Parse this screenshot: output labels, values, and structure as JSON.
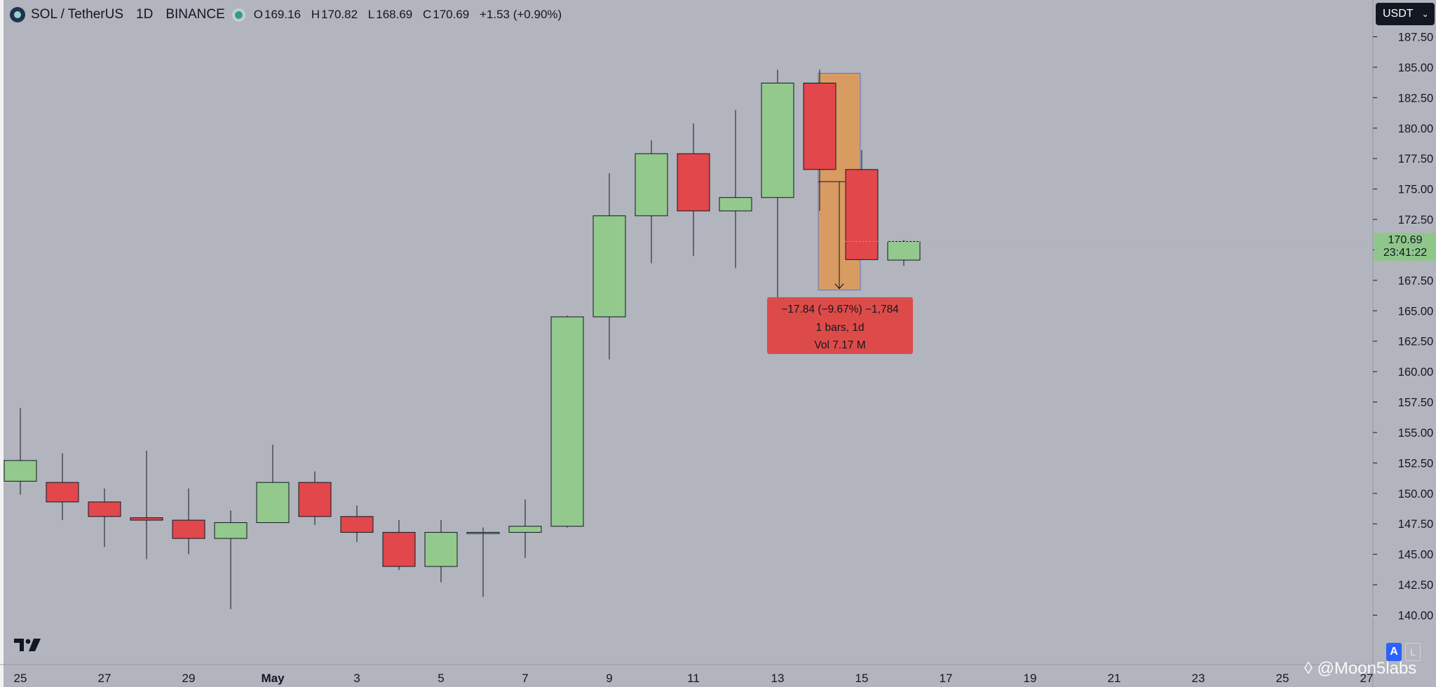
{
  "header": {
    "symbol": "SOL / TetherUS",
    "interval": "1D",
    "exchange": "BINANCE",
    "ohlc": {
      "o_label": "O",
      "o": "169.16",
      "h_label": "H",
      "h": "170.82",
      "l_label": "L",
      "l": "168.69",
      "c_label": "C",
      "c": "170.69",
      "change": "+1.53 (+0.90%)"
    }
  },
  "currency_button": {
    "label": "USDT"
  },
  "last_price": {
    "price": "170.69",
    "countdown": "23:41:22"
  },
  "measure_tooltip": {
    "line1": "−17.84 (−9.67%) −1,784",
    "line2": "1 bars, 1d",
    "line3": "Vol 7.17 M"
  },
  "autoscale_button": {
    "label": "A"
  },
  "log_button": {
    "label": "L"
  },
  "watermark": {
    "text": "@Moon5labs"
  },
  "colors": {
    "up": "#93c98c",
    "down": "#e2474b",
    "background": "#b2b5be",
    "measure_fill": "#d89b62",
    "measure_border": "#5f73c9",
    "tooltip_bg": "#dd4b49"
  },
  "chart_data": {
    "type": "candlestick",
    "y_axis": {
      "range": [
        138.5,
        188.5
      ],
      "ticks": [
        "187.50",
        "185.00",
        "182.50",
        "180.00",
        "177.50",
        "175.00",
        "172.50",
        "170.00",
        "167.50",
        "165.00",
        "162.50",
        "160.00",
        "157.50",
        "155.00",
        "152.50",
        "150.00",
        "147.50",
        "145.00",
        "142.50",
        "140.00"
      ],
      "side": "right"
    },
    "x_axis": {
      "ticks": [
        "25",
        "27",
        "29",
        "May",
        "3",
        "5",
        "7",
        "9",
        "11",
        "13",
        "15",
        "17",
        "19",
        "21",
        "23",
        "25",
        "27"
      ]
    },
    "candles": [
      {
        "date": "Apr 25",
        "open": 151.0,
        "high": 157.0,
        "low": 149.9,
        "close": 152.7
      },
      {
        "date": "Apr 26",
        "open": 150.9,
        "high": 153.3,
        "low": 147.8,
        "close": 149.3
      },
      {
        "date": "Apr 27",
        "open": 149.3,
        "high": 150.4,
        "low": 145.6,
        "close": 148.1
      },
      {
        "date": "Apr 28",
        "open": 148.0,
        "high": 153.5,
        "low": 144.6,
        "close": 147.8
      },
      {
        "date": "Apr 29",
        "open": 147.8,
        "high": 150.4,
        "low": 145.0,
        "close": 146.3
      },
      {
        "date": "Apr 30",
        "open": 146.3,
        "high": 148.6,
        "low": 140.5,
        "close": 147.6
      },
      {
        "date": "May 1",
        "open": 147.6,
        "high": 154.0,
        "low": 147.6,
        "close": 150.9
      },
      {
        "date": "May 2",
        "open": 150.9,
        "high": 151.8,
        "low": 147.4,
        "close": 148.1
      },
      {
        "date": "May 3",
        "open": 148.1,
        "high": 149.0,
        "low": 146.0,
        "close": 146.8
      },
      {
        "date": "May 4",
        "open": 146.8,
        "high": 147.8,
        "low": 143.7,
        "close": 144.0
      },
      {
        "date": "May 5",
        "open": 144.0,
        "high": 147.8,
        "low": 142.7,
        "close": 146.8
      },
      {
        "date": "May 6",
        "open": 146.7,
        "high": 147.2,
        "low": 141.5,
        "close": 146.8
      },
      {
        "date": "May 7",
        "open": 146.8,
        "high": 149.5,
        "low": 144.7,
        "close": 147.3
      },
      {
        "date": "May 8",
        "open": 147.3,
        "high": 164.6,
        "low": 147.2,
        "close": 164.5
      },
      {
        "date": "May 9",
        "open": 164.5,
        "high": 176.3,
        "low": 161.0,
        "close": 172.8
      },
      {
        "date": "May 10",
        "open": 172.8,
        "high": 179.0,
        "low": 168.9,
        "close": 177.9
      },
      {
        "date": "May 11",
        "open": 177.9,
        "high": 180.4,
        "low": 169.5,
        "close": 173.2
      },
      {
        "date": "May 12",
        "open": 173.2,
        "high": 181.5,
        "low": 168.5,
        "close": 174.3
      },
      {
        "date": "May 13",
        "open": 174.3,
        "high": 184.8,
        "low": 166.1,
        "close": 183.7
      },
      {
        "date": "May 14",
        "open": 183.7,
        "high": 184.8,
        "low": 173.2,
        "close": 176.6
      },
      {
        "date": "May 15",
        "open": 176.6,
        "high": 178.2,
        "low": 169.2,
        "close": 169.2
      },
      {
        "date": "May 16",
        "open": 169.16,
        "high": 170.82,
        "low": 168.69,
        "close": 170.69
      }
    ],
    "measure": {
      "from_date": "May 14",
      "to_date": "May 15",
      "from_price": 184.5,
      "to_price": 166.7,
      "change": "−17.84",
      "change_pct": "−9.67%"
    },
    "grid": false
  }
}
